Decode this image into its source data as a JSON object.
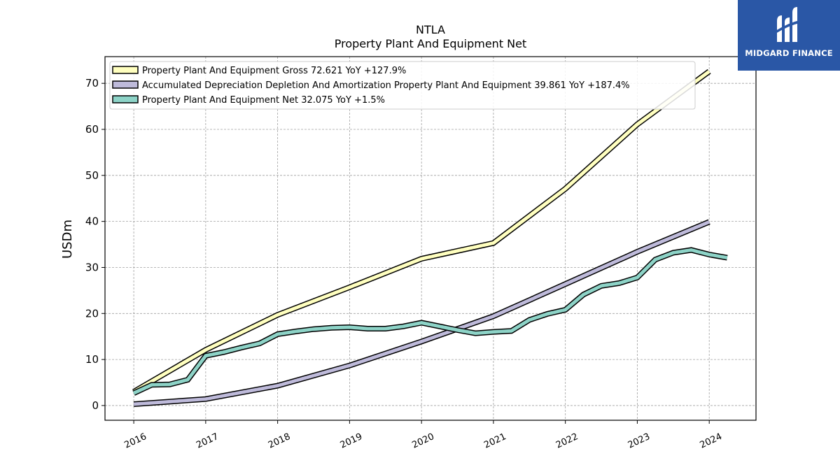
{
  "chart_data": {
    "type": "line",
    "title": "NTLA",
    "subtitle": "Property Plant And Equipment Net",
    "ylabel": "USDm",
    "xlabel": "",
    "xlim": [
      2015.6,
      2024.65
    ],
    "ylim": [
      -3.2,
      75.8
    ],
    "x_ticks": [
      {
        "value": 2016,
        "label": "2016"
      },
      {
        "value": 2017,
        "label": "2017"
      },
      {
        "value": 2018,
        "label": "2018"
      },
      {
        "value": 2019,
        "label": "2019"
      },
      {
        "value": 2020,
        "label": "2020"
      },
      {
        "value": 2021,
        "label": "2021"
      },
      {
        "value": 2022,
        "label": "2022"
      },
      {
        "value": 2023,
        "label": "2023"
      },
      {
        "value": 2024,
        "label": "2024"
      }
    ],
    "y_ticks": [
      0,
      10,
      20,
      30,
      40,
      50,
      60,
      70
    ],
    "grid": true,
    "legend_position": "top-left",
    "series": [
      {
        "name": "Property Plant And Equipment Gross",
        "legend_label": "Property Plant And Equipment Gross  72.621 YoY +127.9%",
        "color": "#ffffbf",
        "points": [
          [
            2016.0,
            3.0
          ],
          [
            2017.0,
            12.1
          ],
          [
            2018.0,
            19.7
          ],
          [
            2019.0,
            25.7
          ],
          [
            2020.0,
            31.9
          ],
          [
            2021.0,
            35.3
          ],
          [
            2022.0,
            47.1
          ],
          [
            2023.0,
            61.1
          ],
          [
            2024.0,
            72.6
          ]
        ]
      },
      {
        "name": "Accumulated Depreciation Depletion And Amortization Property Plant And Equipment",
        "legend_label": "Accumulated Depreciation Depletion And Amortization Property Plant And Equipment  39.861 YoY +187.4%",
        "color": "#bebada",
        "points": [
          [
            2016.0,
            0.3
          ],
          [
            2017.0,
            1.4
          ],
          [
            2018.0,
            4.3
          ],
          [
            2019.0,
            8.7
          ],
          [
            2020.0,
            13.9
          ],
          [
            2021.0,
            19.4
          ],
          [
            2022.0,
            26.4
          ],
          [
            2023.0,
            33.4
          ],
          [
            2024.0,
            39.9
          ]
        ]
      },
      {
        "name": "Property Plant And Equipment Net",
        "legend_label": "Property Plant And Equipment Net  32.075 YoY +1.5%",
        "color": "#8dd3c7",
        "points": [
          [
            2016.0,
            2.7
          ],
          [
            2016.25,
            4.5
          ],
          [
            2016.5,
            4.6
          ],
          [
            2016.75,
            5.6
          ],
          [
            2017.0,
            10.8
          ],
          [
            2017.25,
            11.6
          ],
          [
            2017.5,
            12.6
          ],
          [
            2017.75,
            13.5
          ],
          [
            2018.0,
            15.5
          ],
          [
            2018.25,
            16.1
          ],
          [
            2018.5,
            16.6
          ],
          [
            2018.75,
            16.9
          ],
          [
            2019.0,
            17.0
          ],
          [
            2019.25,
            16.7
          ],
          [
            2019.5,
            16.7
          ],
          [
            2019.75,
            17.2
          ],
          [
            2020.0,
            18.0
          ],
          [
            2020.25,
            17.2
          ],
          [
            2020.5,
            16.4
          ],
          [
            2020.75,
            15.7
          ],
          [
            2021.0,
            16.0
          ],
          [
            2021.25,
            16.2
          ],
          [
            2021.5,
            18.6
          ],
          [
            2021.75,
            19.9
          ],
          [
            2022.0,
            20.8
          ],
          [
            2022.25,
            24.1
          ],
          [
            2022.5,
            26.0
          ],
          [
            2022.75,
            26.6
          ],
          [
            2023.0,
            27.8
          ],
          [
            2023.25,
            31.7
          ],
          [
            2023.5,
            33.2
          ],
          [
            2023.75,
            33.8
          ],
          [
            2024.0,
            32.8
          ],
          [
            2024.25,
            32.1
          ]
        ]
      }
    ]
  },
  "logo": {
    "text": "MIDGARD FINANCE",
    "color": "#2a57a6"
  }
}
